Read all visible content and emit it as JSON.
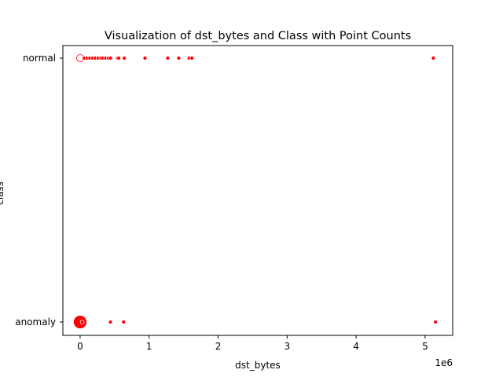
{
  "chart_data": {
    "type": "scatter",
    "title": "Visualization of dst_bytes and Class with Point Counts",
    "xlabel": "dst_bytes",
    "ylabel": "class",
    "x_offset_label": "1e6",
    "x_scale": 1000000,
    "xlim": [
      -250000,
      5400000
    ],
    "x_ticks": [
      0,
      1,
      2,
      3,
      4,
      5
    ],
    "categories": [
      "normal",
      "anomaly"
    ],
    "marker_color": "#ff0000",
    "marker_edge_color": "#ffffff",
    "grid": false,
    "legend": "none",
    "series": [
      {
        "category": "normal",
        "points": [
          {
            "x": 0,
            "size": 9,
            "edge": "#ff0000",
            "fill": "#ffffff"
          },
          {
            "x": 60000,
            "size": 5
          },
          {
            "x": 100000,
            "size": 5
          },
          {
            "x": 140000,
            "size": 5
          },
          {
            "x": 180000,
            "size": 5
          },
          {
            "x": 220000,
            "size": 5
          },
          {
            "x": 260000,
            "size": 5
          },
          {
            "x": 300000,
            "size": 5
          },
          {
            "x": 330000,
            "size": 5
          },
          {
            "x": 370000,
            "size": 5
          },
          {
            "x": 410000,
            "size": 5
          },
          {
            "x": 440000,
            "size": 5
          },
          {
            "x": 540000,
            "size": 5
          },
          {
            "x": 560000,
            "size": 5
          },
          {
            "x": 640000,
            "size": 5
          },
          {
            "x": 940000,
            "size": 5
          },
          {
            "x": 1270000,
            "size": 5
          },
          {
            "x": 1430000,
            "size": 5
          },
          {
            "x": 1580000,
            "size": 5
          },
          {
            "x": 1620000,
            "size": 5
          },
          {
            "x": 5120000,
            "size": 5
          }
        ]
      },
      {
        "category": "anomaly",
        "points": [
          {
            "x": 0,
            "size": 17
          },
          {
            "x": 30000,
            "size": 5
          },
          {
            "x": 440000,
            "size": 5
          },
          {
            "x": 630000,
            "size": 5
          },
          {
            "x": 5150000,
            "size": 5
          }
        ]
      }
    ]
  }
}
